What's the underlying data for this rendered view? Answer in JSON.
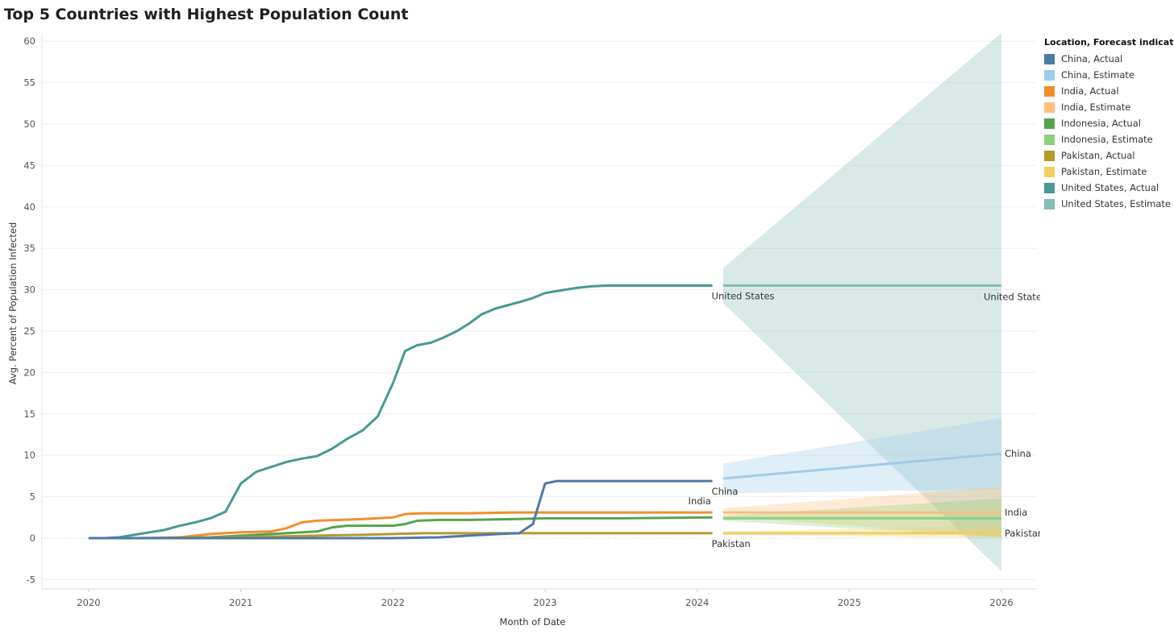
{
  "chart_data": {
    "type": "line",
    "title": "Top 5 Countries with Highest Population Count",
    "xlabel": "Month of Date",
    "ylabel": "Avg. Percent of Population Infected",
    "ylim": [
      -6,
      62
    ],
    "xlim": [
      2019.7,
      2026.23
    ],
    "y_ticks": [
      -5,
      0,
      5,
      10,
      15,
      20,
      25,
      30,
      35,
      40,
      45,
      50,
      55,
      60
    ],
    "x_ticks": [
      2020,
      2021,
      2022,
      2023,
      2024,
      2025,
      2026
    ],
    "legend_title": "Location, Forecast indicator",
    "legend_position": "right",
    "legend": [
      {
        "label": "China, Actual",
        "color": "#4e79a7"
      },
      {
        "label": "China, Estimate",
        "color": "#a0cbe8"
      },
      {
        "label": "India, Actual",
        "color": "#f28e2b"
      },
      {
        "label": "India, Estimate",
        "color": "#ffbe7d"
      },
      {
        "label": "Indonesia, Actual",
        "color": "#59a14f"
      },
      {
        "label": "Indonesia, Estimate",
        "color": "#8cd17d"
      },
      {
        "label": "Pakistan, Actual",
        "color": "#b6992d"
      },
      {
        "label": "Pakistan, Estimate",
        "color": "#f1ce63"
      },
      {
        "label": "United States, Actual",
        "color": "#499894"
      },
      {
        "label": "United States, Estimate",
        "color": "#86bcb6"
      }
    ],
    "series": [
      {
        "name": "United States, Actual",
        "color": "#499894",
        "x": [
          2020.0,
          2020.1,
          2020.2,
          2020.3,
          2020.4,
          2020.5,
          2020.6,
          2020.7,
          2020.8,
          2020.9,
          2021.0,
          2021.1,
          2021.2,
          2021.3,
          2021.4,
          2021.5,
          2021.6,
          2021.7,
          2021.8,
          2021.9,
          2022.0,
          2022.08,
          2022.16,
          2022.25,
          2022.33,
          2022.42,
          2022.5,
          2022.58,
          2022.67,
          2022.75,
          2022.83,
          2022.92,
          2023.0,
          2023.1,
          2023.2,
          2023.3,
          2023.4,
          2023.6,
          2023.8,
          2024.1
        ],
        "values": [
          0,
          0,
          0.1,
          0.4,
          0.7,
          1.0,
          1.5,
          1.9,
          2.4,
          3.2,
          6.6,
          8.0,
          8.6,
          9.2,
          9.6,
          9.9,
          10.8,
          12.0,
          13.0,
          14.7,
          18.7,
          22.6,
          23.3,
          23.6,
          24.2,
          25.0,
          25.9,
          27.0,
          27.7,
          28.1,
          28.5,
          29.0,
          29.6,
          29.9,
          30.2,
          30.4,
          30.5,
          30.5,
          30.5,
          30.5
        ]
      },
      {
        "name": "India, Actual",
        "color": "#f28e2b",
        "x": [
          2020.0,
          2020.3,
          2020.6,
          2020.8,
          2021.0,
          2021.2,
          2021.3,
          2021.4,
          2021.5,
          2021.8,
          2022.0,
          2022.08,
          2022.2,
          2022.5,
          2022.8,
          2023.0,
          2023.5,
          2024.1
        ],
        "values": [
          0,
          0,
          0.1,
          0.5,
          0.7,
          0.8,
          1.2,
          1.9,
          2.1,
          2.3,
          2.5,
          2.9,
          3.0,
          3.0,
          3.1,
          3.1,
          3.1,
          3.1
        ]
      },
      {
        "name": "Indonesia, Actual",
        "color": "#59a14f",
        "x": [
          2020.0,
          2020.5,
          2020.8,
          2021.0,
          2021.2,
          2021.5,
          2021.6,
          2021.7,
          2021.8,
          2022.0,
          2022.08,
          2022.16,
          2022.3,
          2022.5,
          2022.8,
          2023.0,
          2023.5,
          2024.1
        ],
        "values": [
          0,
          0,
          0.1,
          0.3,
          0.5,
          0.8,
          1.3,
          1.5,
          1.5,
          1.5,
          1.7,
          2.1,
          2.2,
          2.2,
          2.3,
          2.4,
          2.4,
          2.5
        ]
      },
      {
        "name": "Pakistan, Actual",
        "color": "#b6992d",
        "x": [
          2020.0,
          2020.5,
          2021.0,
          2021.5,
          2021.8,
          2022.0,
          2022.2,
          2022.6,
          2023.0,
          2023.5,
          2024.1
        ],
        "values": [
          0,
          0,
          0.1,
          0.3,
          0.4,
          0.5,
          0.6,
          0.6,
          0.6,
          0.6,
          0.6
        ]
      },
      {
        "name": "China, Actual",
        "color": "#4e79a7",
        "x": [
          2020.0,
          2021.0,
          2022.0,
          2022.3,
          2022.5,
          2022.7,
          2022.83,
          2022.92,
          2023.0,
          2023.08,
          2023.2,
          2023.5,
          2024.1
        ],
        "values": [
          0,
          0,
          0,
          0.1,
          0.3,
          0.5,
          0.6,
          1.7,
          6.6,
          6.9,
          6.9,
          6.9,
          6.9
        ]
      },
      {
        "name": "United States, Estimate",
        "color": "#86bcb6",
        "x": [
          2024.17,
          2026.0
        ],
        "values": [
          30.5,
          30.5
        ],
        "band_upper": [
          32.6,
          61.0
        ],
        "band_lower": [
          28.4,
          -4.0
        ]
      },
      {
        "name": "China, Estimate",
        "color": "#a0cbe8",
        "x": [
          2024.17,
          2026.0
        ],
        "values": [
          7.2,
          10.2
        ],
        "band_upper": [
          9.0,
          14.5
        ],
        "band_lower": [
          5.4,
          5.9
        ]
      },
      {
        "name": "India, Estimate",
        "color": "#ffbe7d",
        "x": [
          2024.17,
          2026.0
        ],
        "values": [
          3.1,
          3.1
        ],
        "band_upper": [
          3.6,
          6.2
        ],
        "band_lower": [
          2.6,
          0.2
        ]
      },
      {
        "name": "Indonesia, Estimate",
        "color": "#8cd17d",
        "x": [
          2024.17,
          2026.0
        ],
        "values": [
          2.4,
          2.4
        ],
        "band_upper": [
          2.7,
          4.8
        ],
        "band_lower": [
          2.1,
          0.1
        ]
      },
      {
        "name": "Pakistan, Estimate",
        "color": "#f1ce63",
        "x": [
          2024.17,
          2026.0
        ],
        "values": [
          0.6,
          0.6
        ],
        "band_upper": [
          0.8,
          1.5
        ],
        "band_lower": [
          0.4,
          0.0
        ]
      }
    ],
    "annotations": [
      {
        "text": "United States",
        "x": 2024.1,
        "y": 30.5,
        "anchor": "below"
      },
      {
        "text": "United States",
        "x": 2026.0,
        "y": 30.5,
        "anchor": "right-below"
      },
      {
        "text": "China",
        "x": 2024.1,
        "y": 6.9,
        "anchor": "below"
      },
      {
        "text": "China",
        "x": 2026.0,
        "y": 10.2,
        "anchor": "right"
      },
      {
        "text": "India",
        "x": 2024.1,
        "y": 3.1,
        "anchor": "above"
      },
      {
        "text": "India",
        "x": 2026.0,
        "y": 3.1,
        "anchor": "right"
      },
      {
        "text": "Pakistan",
        "x": 2024.1,
        "y": 0.6,
        "anchor": "below"
      },
      {
        "text": "Pakistan",
        "x": 2026.0,
        "y": 0.6,
        "anchor": "right"
      }
    ]
  }
}
